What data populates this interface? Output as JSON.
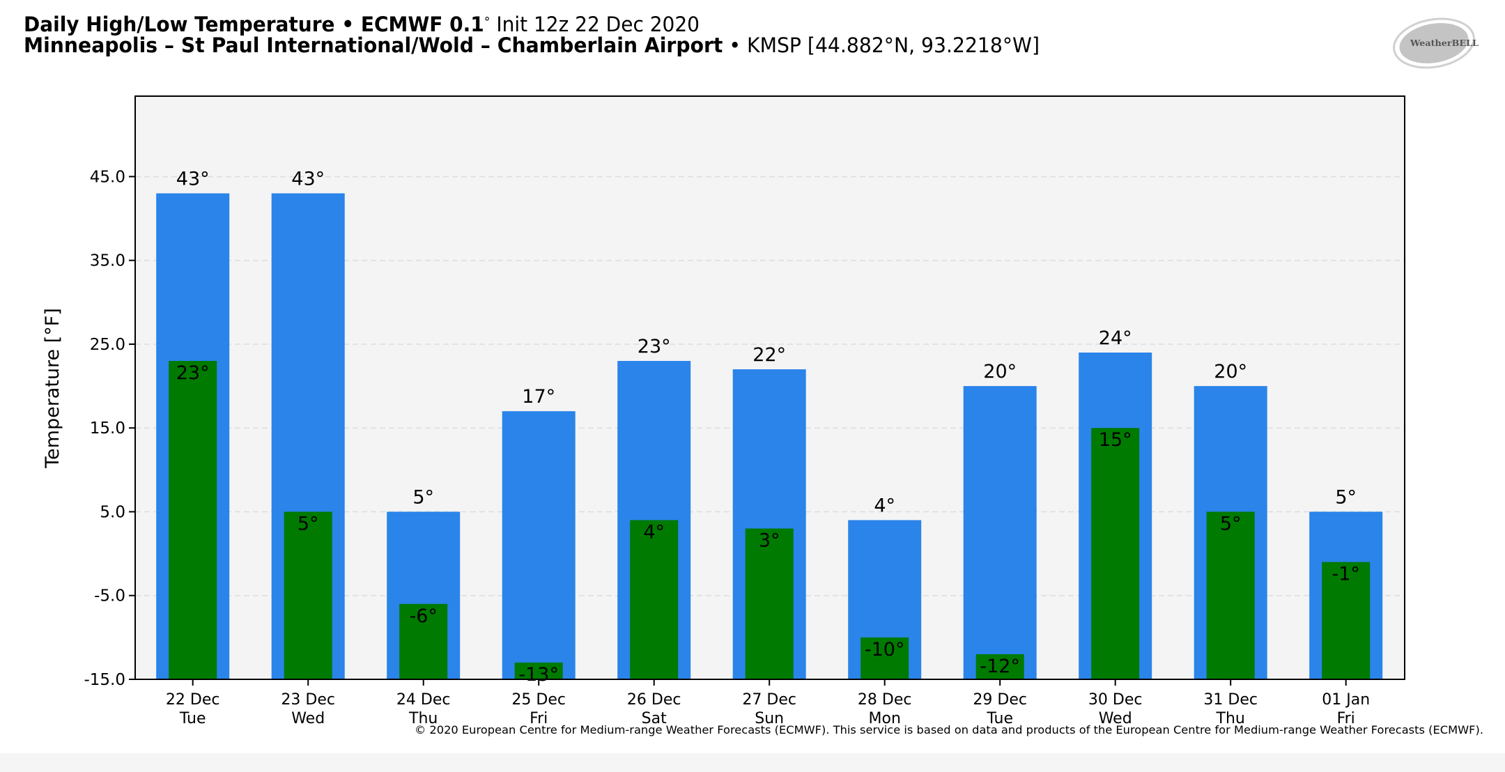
{
  "header": {
    "title_bold": "Daily High/Low Temperature • ECMWF 0.1",
    "title_deg": "°",
    "title_init": " Init 12z 22 Dec 2020",
    "location_bold": "Minneapolis – St Paul International/Wold – Chamberlain Airport",
    "location_sep": " • ",
    "location_code": "KMSP [44.882°N, 93.2218°W]"
  },
  "logo": {
    "text": "WeatherBELL"
  },
  "colors": {
    "high": "#2a84ea",
    "low": "#007a00",
    "plot_bg": "#f4f4f4",
    "grid": "#dddddd"
  },
  "chart_data": {
    "type": "bar",
    "title": "Daily High/Low Temperature",
    "xlabel": "",
    "ylabel": "Temperature [°F]",
    "ylim": [
      -15,
      54.6
    ],
    "yticks": [
      -15.0,
      -5.0,
      5.0,
      15.0,
      25.0,
      35.0,
      45.0
    ],
    "ytick_labels": [
      "-15.0",
      "-5.0",
      "5.0",
      "15.0",
      "25.0",
      "35.0",
      "45.0"
    ],
    "grid": true,
    "categories": [
      "22 Dec",
      "23 Dec",
      "24 Dec",
      "25 Dec",
      "26 Dec",
      "27 Dec",
      "28 Dec",
      "29 Dec",
      "30 Dec",
      "31 Dec",
      "01 Jan"
    ],
    "weekdays": [
      "Tue",
      "Wed",
      "Thu",
      "Fri",
      "Sat",
      "Sun",
      "Mon",
      "Tue",
      "Wed",
      "Thu",
      "Fri"
    ],
    "series": [
      {
        "name": "High",
        "values": [
          43,
          43,
          5,
          17,
          23,
          22,
          4,
          20,
          24,
          20,
          5
        ]
      },
      {
        "name": "Low",
        "values": [
          23,
          5,
          -6,
          -13,
          4,
          3,
          -10,
          -12,
          15,
          5,
          -1
        ]
      }
    ],
    "high_labels": [
      "43°",
      "43°",
      "5°",
      "17°",
      "23°",
      "22°",
      "4°",
      "20°",
      "24°",
      "20°",
      "5°"
    ],
    "low_labels": [
      "23°",
      "5°",
      "-6°",
      "-13°",
      "4°",
      "3°",
      "-10°",
      "-12°",
      "15°",
      "5°",
      "-1°"
    ]
  },
  "footer": {
    "copyright": "© 2020 European Centre for Medium-range Weather Forecasts (ECMWF). This service is based on data and products of the European Centre for Medium-range Weather Forecasts (ECMWF)."
  }
}
